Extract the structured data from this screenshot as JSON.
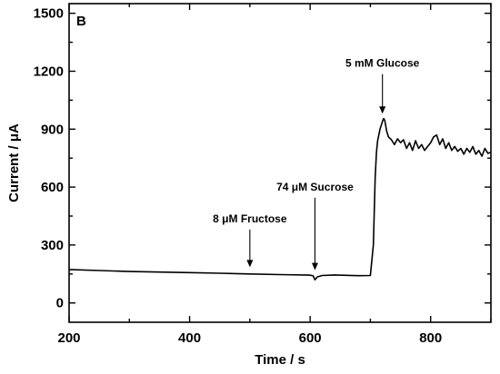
{
  "chart_data": {
    "type": "line",
    "panel_label": "B",
    "xlabel": "Time / s",
    "ylabel": "Current / μA",
    "xlim": [
      200,
      900
    ],
    "ylim": [
      -100,
      1550
    ],
    "x_ticks": [
      200,
      400,
      600,
      800
    ],
    "y_ticks": [
      0,
      300,
      600,
      900,
      1200,
      1500
    ],
    "grid": false,
    "series": [
      {
        "color": "#000000",
        "x": [
          200,
          250,
          300,
          350,
          400,
          450,
          500,
          550,
          600,
          605,
          608,
          612,
          620,
          640,
          660,
          680,
          700,
          705,
          708,
          710,
          712,
          714,
          716,
          718,
          720,
          722,
          724,
          727,
          730,
          735,
          740,
          745,
          750,
          755,
          760,
          765,
          770,
          775,
          780,
          785,
          790,
          795,
          800,
          805,
          810,
          815,
          820,
          825,
          830,
          835,
          840,
          845,
          850,
          855,
          860,
          865,
          870,
          875,
          880,
          885,
          890,
          895,
          900
        ],
        "y": [
          173,
          168,
          163,
          160,
          157,
          154,
          150,
          147,
          144,
          140,
          120,
          135,
          142,
          145,
          143,
          141,
          142,
          300,
          650,
          780,
          840,
          870,
          900,
          920,
          940,
          955,
          945,
          890,
          860,
          845,
          820,
          850,
          830,
          845,
          800,
          830,
          790,
          840,
          800,
          820,
          790,
          810,
          830,
          860,
          870,
          820,
          850,
          800,
          830,
          790,
          810,
          785,
          800,
          770,
          800,
          780,
          810,
          770,
          790,
          760,
          800,
          775,
          780
        ]
      }
    ],
    "annotations": [
      {
        "text": "8 μM Fructose",
        "x": 500,
        "arrow_from_y": 380,
        "arrow_to_y": 185
      },
      {
        "text": "74 μM Sucrose",
        "x": 608,
        "arrow_from_y": 545,
        "arrow_to_y": 170
      },
      {
        "text": "5 mM Glucose",
        "x": 720,
        "arrow_from_y": 1185,
        "arrow_to_y": 980
      }
    ]
  }
}
